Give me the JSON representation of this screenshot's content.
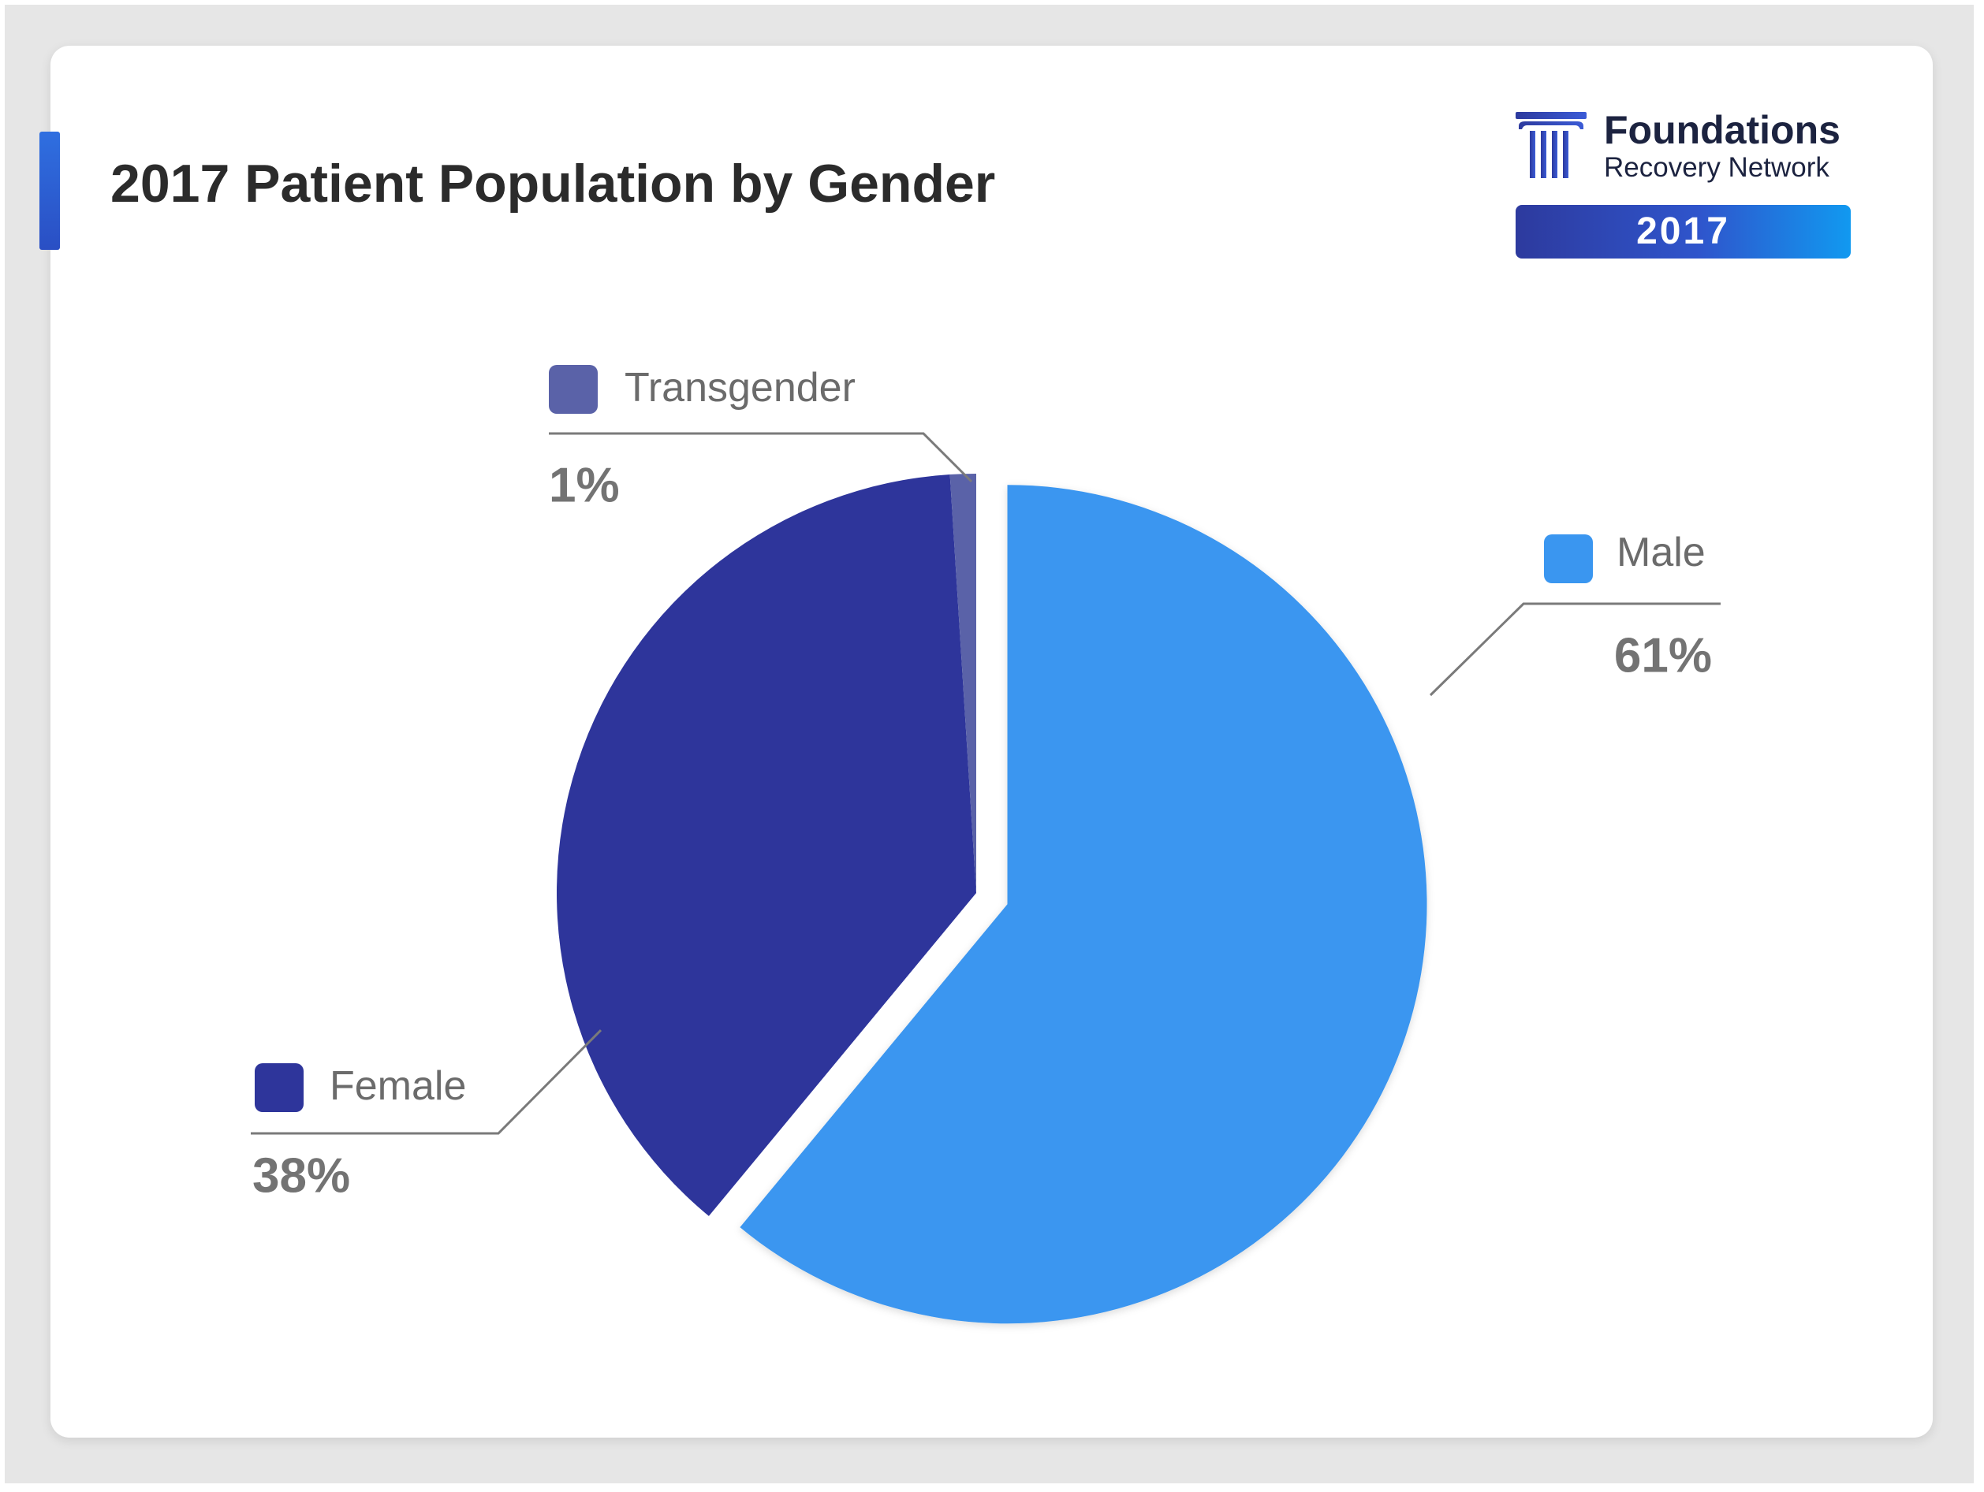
{
  "header": {
    "title": "2017 Patient Population by Gender"
  },
  "logo": {
    "name": "Foundations",
    "subtitle": "Recovery Network",
    "icon": "pillar-icon",
    "badge": "2017"
  },
  "colors": {
    "male": "#3a96f0",
    "female": "#2e359b",
    "transgender": "#5a62a8",
    "label_text": "#6b6b6b",
    "percent_text": "#737373",
    "leader_line": "#7a7a7a"
  },
  "chart_data": {
    "type": "pie",
    "title": "2017 Patient Population by Gender",
    "series": [
      {
        "name": "Male",
        "value": 61,
        "label": "61%",
        "exploded": true
      },
      {
        "name": "Female",
        "value": 38,
        "label": "38%",
        "exploded": false
      },
      {
        "name": "Transgender",
        "value": 1,
        "label": "1%",
        "exploded": false
      }
    ],
    "start_angle": "12 o'clock",
    "direction": "clockwise",
    "legend": "per-slice callouts"
  }
}
